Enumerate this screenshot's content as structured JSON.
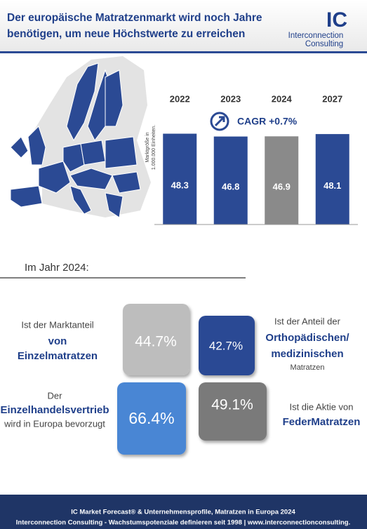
{
  "header": {
    "title_lines": [
      "Der europäische Matratzenmarkt wird noch Jahre",
      "benötigen, um neue Höchstwerte zu erreichen"
    ],
    "logo_mark": "IC",
    "logo_line1": "Interconnection",
    "logo_line2": "Consulting"
  },
  "chart_data": {
    "type": "bar",
    "y_label_lines": [
      "Marktgröße in",
      "1.000.000 Einheiten."
    ],
    "categories": [
      "2022",
      "2023",
      "2024",
      "2027"
    ],
    "values": [
      48.3,
      46.8,
      46.9,
      48.1
    ],
    "colors": [
      "#2b4a94",
      "#2b4a94",
      "#8a8a8a",
      "#2b4a94"
    ],
    "ylim": [
      0,
      50
    ],
    "annotation": "CAGR +0.7%"
  },
  "section": {
    "title": "Im Jahr 2024:"
  },
  "stats": [
    {
      "value": "44.7%",
      "lines": [
        "Ist der Marktanteil",
        "von",
        "Einzelmatratzen"
      ]
    },
    {
      "value": "42.7%",
      "lines": [
        "Ist der Anteil der",
        "Orthopädischen/",
        "medizinischen",
        "Matratzen"
      ]
    },
    {
      "value": "66.4%",
      "lines": [
        "Der",
        "Einzelhandelsvertrieb",
        "wird in Europa bevorzugt"
      ]
    },
    {
      "value": "49.1%",
      "lines": [
        "Ist die Aktie von",
        "FederMatratzen"
      ]
    }
  ],
  "footer": {
    "lines": [
      "IC Market Forecast® & Unternehmensprofile, Matratzen in Europa 2024",
      "Interconnection Consulting - Wachstumspotenziale definieren seit 1998 | www.interconnectionconsulting."
    ]
  }
}
